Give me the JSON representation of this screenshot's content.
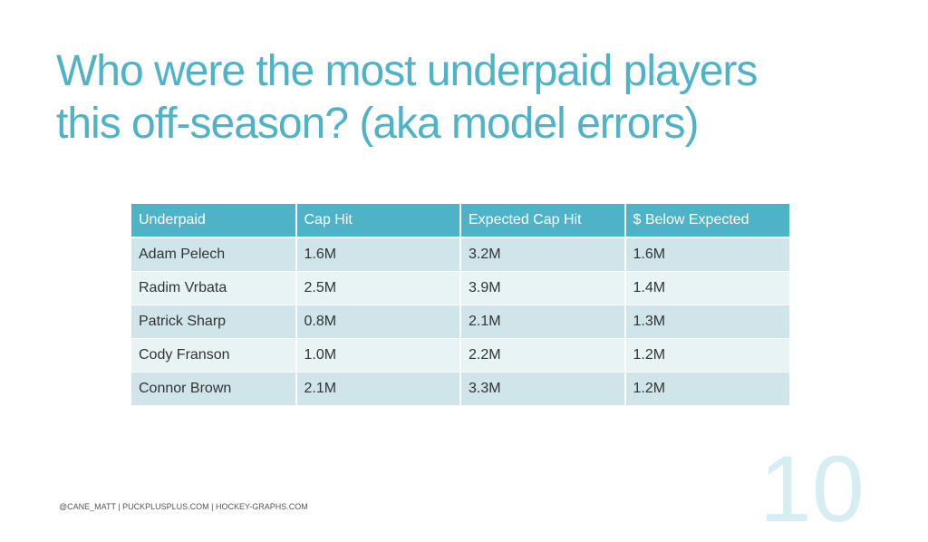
{
  "slide": {
    "title_line1": "Who were the most underpaid players",
    "title_line2": "this off-season? (aka model errors)",
    "footer": "@CANE_MATT | PUCKPLUSPLUS.COM | HOCKEY-GRAPHS.COM",
    "page_number": "10"
  },
  "table": {
    "headers": [
      "Underpaid",
      "Cap Hit",
      "Expected Cap Hit",
      "$ Below Expected"
    ],
    "rows": [
      [
        "Adam Pelech",
        "1.6M",
        "3.2M",
        "1.6M"
      ],
      [
        "Radim Vrbata",
        "2.5M",
        "3.9M",
        "1.4M"
      ],
      [
        "Patrick Sharp",
        "0.8M",
        "2.1M",
        "1.3M"
      ],
      [
        "Cody Franson",
        "1.0M",
        "2.2M",
        "1.2M"
      ],
      [
        "Connor Brown",
        "2.1M",
        "3.3M",
        "1.2M"
      ]
    ]
  },
  "colors": {
    "accent": "#4fb3c8",
    "row_odd": "#cfe5ea",
    "row_even": "#e8f3f5",
    "page_number": "#d6edf2"
  }
}
